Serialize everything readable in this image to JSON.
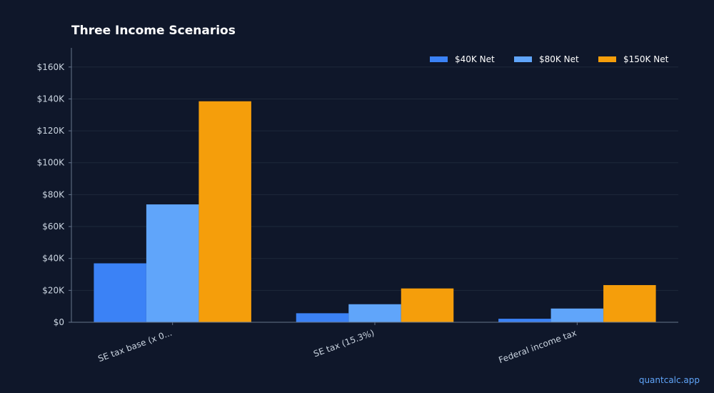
{
  "title": "Three Income Scenarios",
  "watermark": "quantcalc.app",
  "colors": {
    "background": "#0f172a",
    "grid": "#1e293b",
    "axis": "#64748b"
  },
  "chart_data": {
    "type": "bar",
    "title": "Three Income Scenarios",
    "xlabel": "",
    "ylabel": "",
    "categories": [
      "SE tax base (x 0...",
      "SE tax (15.3%)",
      "Federal income tax"
    ],
    "series": [
      {
        "name": "$40K Net",
        "color": "#3b82f6",
        "values": [
          36940,
          5652,
          2200
        ]
      },
      {
        "name": "$80K Net",
        "color": "#60a5fa",
        "values": [
          73880,
          11304,
          8600
        ]
      },
      {
        "name": "$150K Net",
        "color": "#f59e0b",
        "values": [
          138525,
          21195,
          23300
        ]
      }
    ],
    "ylim": [
      0,
      172000
    ],
    "yticks": [
      0,
      20000,
      40000,
      60000,
      80000,
      100000,
      120000,
      140000,
      160000
    ],
    "ytick_labels": [
      "$0",
      "$20K",
      "$40K",
      "$60K",
      "$80K",
      "$100K",
      "$120K",
      "$140K",
      "$160K"
    ],
    "grid": true,
    "legend": "top-right"
  }
}
